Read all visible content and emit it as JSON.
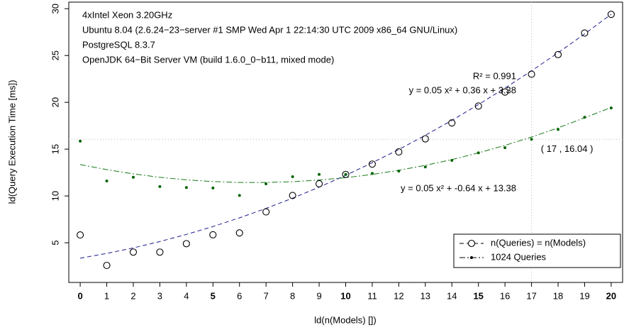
{
  "chart_data": {
    "type": "scatter",
    "annotations": [
      "4xIntel Xeon 3.20GHz",
      "Ubuntu 8.04 (2.6.24−23−server #1 SMP Wed Apr 1 22:14:30 UTC 2009 x86_64 GNU/Linux)",
      "PostgreSQL 8.3.7",
      "OpenJDK 64−Bit Server VM (build 1.6.0_0−b11, mixed mode)"
    ],
    "xlabel": "ld(n(Models) [])",
    "ylabel": "ld(Query Execution Time [ms])",
    "x": [
      0,
      1,
      2,
      3,
      4,
      5,
      6,
      7,
      8,
      9,
      10,
      11,
      12,
      13,
      14,
      15,
      16,
      17,
      18,
      19,
      20
    ],
    "series": [
      {
        "name": "n(Queries) = n(Models)",
        "color": "#000000",
        "marker": "open",
        "values": [
          5.83,
          2.58,
          4.0,
          4.0,
          4.9,
          5.85,
          6.05,
          8.3,
          10.05,
          11.3,
          12.3,
          13.4,
          14.7,
          16.1,
          17.8,
          19.6,
          21.1,
          23.0,
          25.1,
          27.4,
          29.4
        ]
      },
      {
        "name": "1024 Queries",
        "color": "#006400",
        "marker": "dot",
        "values": [
          15.85,
          11.6,
          12.0,
          11.0,
          10.9,
          10.85,
          10.05,
          11.3,
          12.05,
          12.3,
          12.3,
          12.4,
          12.65,
          13.1,
          13.8,
          14.6,
          15.15,
          16.05,
          17.1,
          18.4,
          19.4
        ]
      }
    ],
    "fits": [
      {
        "color": "#1c1c8c",
        "dash": "6,4",
        "labels": [
          "R² = 0.991",
          "y = 0.05 x² + 0.36 x + 3.38"
        ],
        "values": [
          3.35,
          3.86,
          4.45,
          5.13,
          5.89,
          6.73,
          7.66,
          8.67,
          9.76,
          10.94,
          12.2,
          13.55,
          14.96,
          16.48,
          18.07,
          19.76,
          21.52,
          23.36,
          25.29,
          27.31,
          29.4
        ]
      },
      {
        "color": "#1a7a1a",
        "dash": "8,3,2,3",
        "labels": [
          "y = 0.05 x² + -0.64 x + 13.38"
        ],
        "values": [
          13.35,
          12.81,
          12.36,
          11.99,
          11.72,
          11.54,
          11.44,
          11.44,
          11.52,
          11.7,
          11.95,
          12.3,
          12.74,
          13.27,
          13.88,
          14.6,
          15.4,
          16.29,
          17.27,
          18.35,
          19.45
        ]
      }
    ],
    "crosshair": {
      "x": 17,
      "y": 16.04,
      "label": "( 17 , 16.04 )",
      "color": "#bbbbbb"
    },
    "xlim": [
      -0.43,
      20.43
    ],
    "ylim": [
      0.76,
      30.7
    ],
    "xticks": [
      0,
      1,
      2,
      3,
      4,
      5,
      6,
      7,
      8,
      9,
      10,
      11,
      12,
      13,
      14,
      15,
      16,
      17,
      18,
      19,
      20
    ],
    "xticks_bold": [
      0,
      5,
      10,
      15,
      20
    ],
    "yticks": [
      5,
      10,
      15,
      20,
      25,
      30
    ],
    "legend": "bottom-right"
  }
}
